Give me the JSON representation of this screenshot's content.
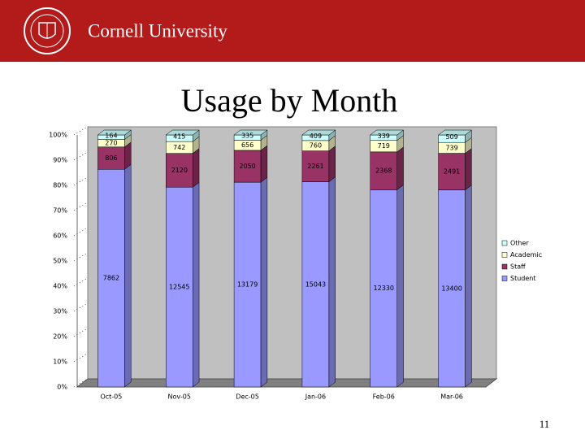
{
  "header": {
    "org": "Cornell University"
  },
  "page_number": "11",
  "chart_data": {
    "type": "stacked_percent_bar",
    "title": "Usage by Month",
    "categories": [
      "Oct-05",
      "Nov-05",
      "Dec-05",
      "Jan-06",
      "Feb-06",
      "Mar-06"
    ],
    "series": [
      {
        "name": "Student",
        "color": "#9999ff",
        "values": [
          7862,
          12545,
          13179,
          15043,
          12330,
          13400
        ]
      },
      {
        "name": "Staff",
        "color": "#993366",
        "values": [
          806,
          2120,
          2050,
          2261,
          2368,
          2491
        ]
      },
      {
        "name": "Academic",
        "color": "#ffffcc",
        "values": [
          270,
          742,
          656,
          760,
          719,
          739
        ]
      },
      {
        "name": "Other",
        "color": "#ccffff",
        "values": [
          164,
          415,
          335,
          409,
          339,
          509
        ]
      }
    ],
    "ylim": [
      0,
      100
    ],
    "yticks": [
      {
        "value": 0,
        "label": "0%"
      },
      {
        "value": 10,
        "label": "10%"
      },
      {
        "value": 20,
        "label": "20%"
      },
      {
        "value": 30,
        "label": "30%"
      },
      {
        "value": 40,
        "label": "40%"
      },
      {
        "value": 50,
        "label": "50%"
      },
      {
        "value": 60,
        "label": "60%"
      },
      {
        "value": 70,
        "label": "70%"
      },
      {
        "value": 80,
        "label": "80%"
      },
      {
        "value": 90,
        "label": "90%"
      },
      {
        "value": 100,
        "label": "100%"
      }
    ],
    "legend": "right"
  }
}
